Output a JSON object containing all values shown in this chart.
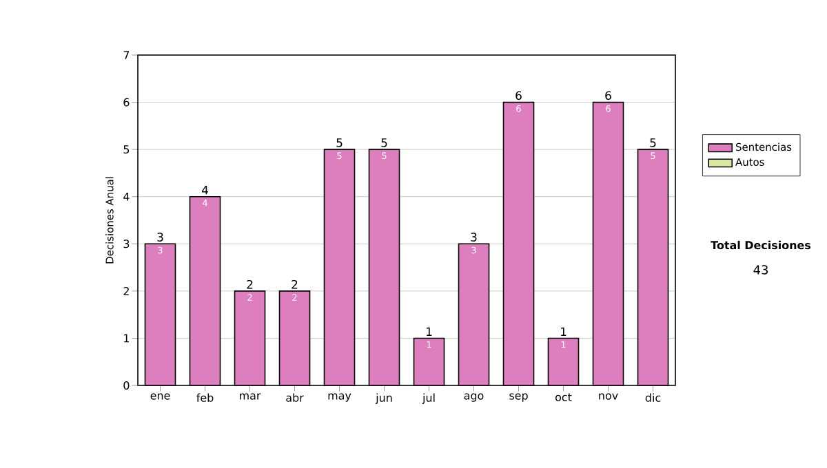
{
  "chart_data": {
    "type": "bar",
    "stacked": true,
    "ylabel": "Decisiones Anual",
    "categories": [
      "ene",
      "feb",
      "mar",
      "abr",
      "may",
      "jun",
      "jul",
      "ago",
      "sep",
      "oct",
      "nov",
      "dic"
    ],
    "series": [
      {
        "name": "Sentencias",
        "color": "#dd7fbe",
        "values": [
          3,
          4,
          2,
          2,
          5,
          5,
          1,
          3,
          6,
          1,
          6,
          5
        ],
        "value_labels": [
          "3",
          "4",
          "2",
          "2",
          "5",
          "5",
          "1",
          "3",
          "6",
          "1",
          "6",
          "5"
        ]
      },
      {
        "name": "Autos",
        "color": "#d8e8a0",
        "values": [
          0,
          0,
          0,
          0,
          0,
          0,
          0,
          0,
          0,
          0,
          0,
          0
        ]
      }
    ],
    "totals": [
      "3",
      "4",
      "2",
      "2",
      "5",
      "5",
      "1",
      "3",
      "6",
      "1",
      "6",
      "5"
    ],
    "ylim": [
      0,
      7
    ],
    "yticks": [
      0,
      1,
      2,
      3,
      4,
      5,
      6,
      7
    ],
    "grid": "y",
    "legend": "right",
    "annotations": [
      "**Total Decisiones**",
      "43"
    ]
  }
}
